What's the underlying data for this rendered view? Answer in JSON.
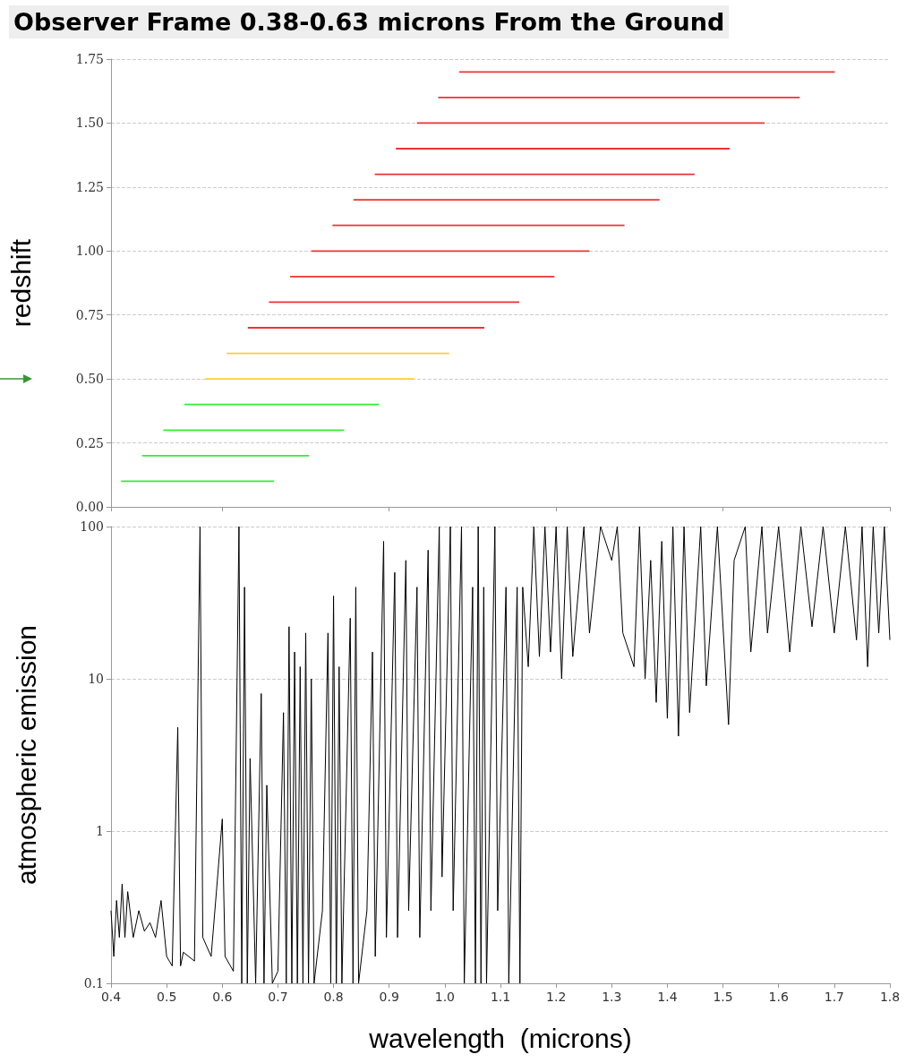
{
  "chart_data": [
    {
      "type": "line",
      "title": "Observer Frame 0.38-0.63 microns From the Ground",
      "ylabel": "redshift",
      "xlim": [
        0.4,
        1.8
      ],
      "ylim": [
        0,
        1.75
      ],
      "yticks": [
        {
          "value": 0,
          "label": "0.00"
        },
        {
          "value": 0.25,
          "label": "0.25"
        },
        {
          "value": 0.5,
          "label": "0.50"
        },
        {
          "value": 0.75,
          "label": "0.75"
        },
        {
          "value": 1,
          "label": "1.00"
        },
        {
          "value": 1.25,
          "label": "1.25"
        },
        {
          "value": 1.5,
          "label": "1.50"
        },
        {
          "value": 1.75,
          "label": "1.75"
        }
      ],
      "tick_labels": "y",
      "grid": "y",
      "marker": "none",
      "series": [
        {
          "color": "#33ee33",
          "x": [
            0.418,
            0.693
          ],
          "values": [
            0.1,
            0.1
          ]
        },
        {
          "color": "#33ee33",
          "x": [
            0.456,
            0.756
          ],
          "values": [
            0.2,
            0.2
          ]
        },
        {
          "color": "#33ee33",
          "x": [
            0.494,
            0.819
          ],
          "values": [
            0.3,
            0.3
          ]
        },
        {
          "color": "#33ee33",
          "x": [
            0.532,
            0.882
          ],
          "values": [
            0.4,
            0.4
          ]
        },
        {
          "color": "#ffcc33",
          "x": [
            0.57,
            0.945
          ],
          "values": [
            0.5,
            0.5
          ]
        },
        {
          "color": "#ffcc33",
          "x": [
            0.608,
            1.008
          ],
          "values": [
            0.6,
            0.6
          ]
        },
        {
          "color": "#ee3333",
          "x": [
            0.646,
            1.071
          ],
          "values": [
            0.7,
            0.7
          ]
        },
        {
          "color": "#ee3333",
          "x": [
            0.684,
            1.134
          ],
          "values": [
            0.8,
            0.8
          ]
        },
        {
          "color": "#ee3333",
          "x": [
            0.722,
            1.197
          ],
          "values": [
            0.9,
            0.9
          ]
        },
        {
          "color": "#ee3333",
          "x": [
            0.76,
            1.26
          ],
          "values": [
            1.0,
            1.0
          ]
        },
        {
          "color": "#ee3333",
          "x": [
            0.798,
            1.323
          ],
          "values": [
            1.1,
            1.1
          ]
        },
        {
          "color": "#ee3333",
          "x": [
            0.836,
            1.386
          ],
          "values": [
            1.2,
            1.2
          ]
        },
        {
          "color": "#ee3333",
          "x": [
            0.874,
            1.449
          ],
          "values": [
            1.3,
            1.3
          ]
        },
        {
          "color": "#ee3333",
          "x": [
            0.912,
            1.512
          ],
          "values": [
            1.4,
            1.4
          ]
        },
        {
          "color": "#ee3333",
          "x": [
            0.95,
            1.575
          ],
          "values": [
            1.5,
            1.5
          ]
        },
        {
          "color": "#ee3333",
          "x": [
            0.988,
            1.638
          ],
          "values": [
            1.6,
            1.6
          ]
        },
        {
          "color": "#ee3333",
          "x": [
            1.026,
            1.701
          ],
          "values": [
            1.7,
            1.7
          ]
        }
      ]
    },
    {
      "type": "line",
      "xlabel": "wavelength  (microns)",
      "ylabel": "atmospheric emission",
      "log": "y",
      "xlim": [
        0.4,
        1.8
      ],
      "ylim": [
        0.1,
        100
      ],
      "xticks": [
        0.4,
        0.5,
        0.6,
        0.7,
        0.8,
        0.9,
        {
          "value": 1.0,
          "label": "1.0"
        },
        1.1,
        1.2,
        1.3,
        1.4,
        1.5,
        1.6,
        1.7,
        1.8
      ],
      "yticks": [
        0.1,
        1,
        10,
        100
      ],
      "grid": "y",
      "marker": "none",
      "x": [
        0.4,
        0.405,
        0.41,
        0.415,
        0.42,
        0.425,
        0.43,
        0.44,
        0.45,
        0.46,
        0.47,
        0.48,
        0.49,
        0.5,
        0.51,
        0.52,
        0.525,
        0.53,
        0.55,
        0.56,
        0.565,
        0.58,
        0.6,
        0.605,
        0.62,
        0.63,
        0.635,
        0.64,
        0.645,
        0.65,
        0.66,
        0.67,
        0.675,
        0.68,
        0.69,
        0.7,
        0.71,
        0.715,
        0.72,
        0.725,
        0.73,
        0.735,
        0.74,
        0.745,
        0.75,
        0.755,
        0.76,
        0.765,
        0.78,
        0.79,
        0.795,
        0.8,
        0.805,
        0.81,
        0.815,
        0.83,
        0.835,
        0.84,
        0.845,
        0.86,
        0.87,
        0.875,
        0.89,
        0.895,
        0.91,
        0.915,
        0.93,
        0.935,
        0.95,
        0.955,
        0.97,
        0.975,
        0.99,
        0.995,
        1.01,
        1.015,
        1.03,
        1.035,
        1.05,
        1.055,
        1.06,
        1.065,
        1.07,
        1.075,
        1.09,
        1.095,
        1.11,
        1.115,
        1.13,
        1.135,
        1.14,
        1.15,
        1.16,
        1.17,
        1.18,
        1.19,
        1.2,
        1.21,
        1.22,
        1.23,
        1.25,
        1.26,
        1.28,
        1.3,
        1.31,
        1.32,
        1.34,
        1.35,
        1.36,
        1.37,
        1.38,
        1.39,
        1.4,
        1.41,
        1.42,
        1.43,
        1.44,
        1.46,
        1.47,
        1.49,
        1.51,
        1.52,
        1.54,
        1.55,
        1.57,
        1.58,
        1.6,
        1.62,
        1.64,
        1.66,
        1.68,
        1.7,
        1.72,
        1.74,
        1.75,
        1.76,
        1.77,
        1.78,
        1.79,
        1.8
      ],
      "series": [
        {
          "color": "#000000",
          "values": [
            0.3,
            0.15,
            0.35,
            0.2,
            0.45,
            0.2,
            0.4,
            0.2,
            0.3,
            0.22,
            0.25,
            0.2,
            0.35,
            0.15,
            0.13,
            4.8,
            0.13,
            0.16,
            0.14,
            100,
            0.2,
            0.15,
            1.2,
            0.15,
            0.12,
            100,
            0.1,
            40,
            0.1,
            3,
            0.1,
            8,
            0.1,
            2,
            0.1,
            0.12,
            6,
            0.1,
            22,
            0.1,
            15,
            0.1,
            12,
            0.1,
            20,
            0.1,
            10,
            0.1,
            0.3,
            20,
            0.1,
            35,
            0.1,
            12,
            0.1,
            25,
            0.1,
            40,
            0.1,
            0.3,
            15,
            0.15,
            80,
            0.2,
            50,
            0.2,
            60,
            0.3,
            40,
            0.2,
            70,
            0.3,
            100,
            0.5,
            100,
            0.3,
            100,
            0.1,
            40,
            0.1,
            100,
            0.1,
            40,
            0.1,
            100,
            0.3,
            40,
            0.1,
            40,
            0.1,
            40,
            12,
            100,
            14,
            100,
            15,
            100,
            10,
            100,
            14,
            100,
            20,
            100,
            60,
            100,
            20,
            12,
            100,
            10,
            60,
            7,
            80,
            5.5,
            100,
            4.2,
            100,
            6,
            100,
            9,
            100,
            5,
            60,
            100,
            15,
            100,
            20,
            100,
            15,
            100,
            22,
            100,
            20,
            100,
            18,
            100,
            12,
            100,
            20,
            100,
            18
          ]
        }
      ]
    }
  ]
}
